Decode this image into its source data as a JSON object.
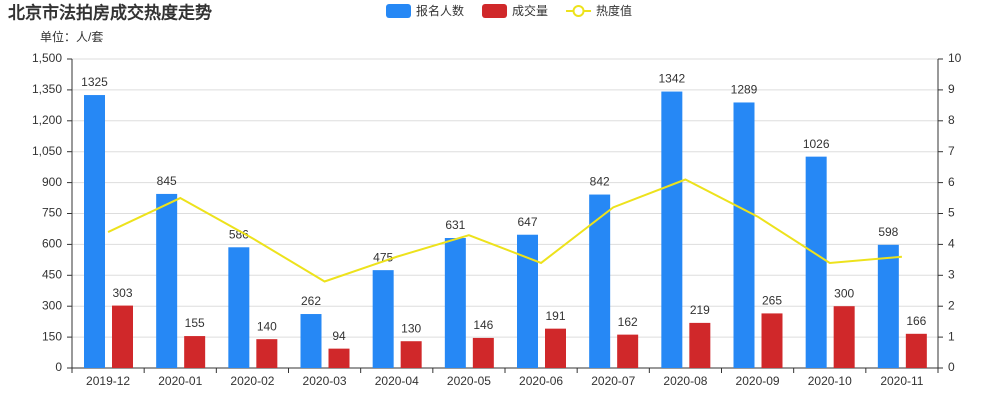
{
  "chart_data": {
    "type": "bar-line",
    "title": "北京市法拍房成交热度走势",
    "subtitle": "单位：人/套",
    "categories": [
      "2019-12",
      "2020-01",
      "2020-02",
      "2020-03",
      "2020-04",
      "2020-05",
      "2020-06",
      "2020-07",
      "2020-08",
      "2020-09",
      "2020-10",
      "2020-11"
    ],
    "series": [
      {
        "name": "报名人数",
        "type": "bar",
        "color": "#2688f5",
        "values": [
          1325,
          845,
          586,
          262,
          475,
          631,
          647,
          842,
          1342,
          1289,
          1026,
          598
        ]
      },
      {
        "name": "成交量",
        "type": "bar",
        "color": "#d0282a",
        "values": [
          303,
          155,
          140,
          94,
          130,
          146,
          191,
          162,
          219,
          265,
          300,
          166
        ]
      },
      {
        "name": "热度值",
        "type": "line",
        "axis": "y2",
        "color": "#ede21c",
        "values": [
          4.4,
          5.5,
          4.2,
          2.8,
          3.6,
          4.3,
          3.4,
          5.2,
          6.1,
          4.9,
          3.4,
          3.6
        ]
      }
    ],
    "ylim": [
      0,
      1500
    ],
    "yticks": [
      0,
      150,
      300,
      450,
      600,
      750,
      900,
      {
        "value": 1050,
        "label": "1,050"
      },
      {
        "value": 1200,
        "label": "1,200"
      },
      {
        "value": 1350,
        "label": "1,350"
      },
      {
        "value": 1500,
        "label": "1,500"
      }
    ],
    "y2lim": [
      0,
      10
    ],
    "y2ticks": [
      0,
      1,
      2,
      3,
      4,
      5,
      6,
      7,
      8,
      9,
      10
    ],
    "grid": true
  }
}
